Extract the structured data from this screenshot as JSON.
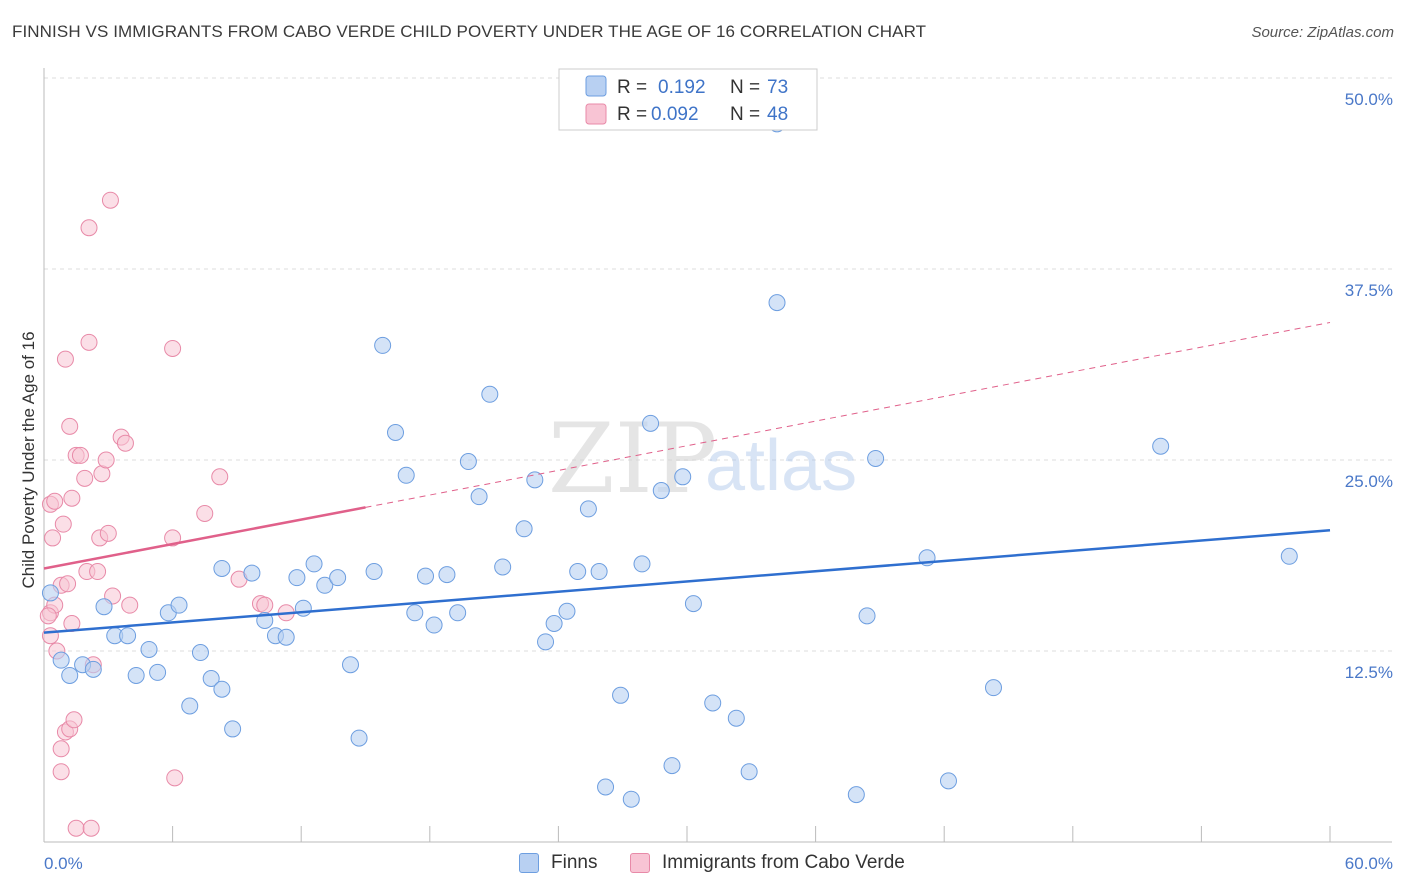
{
  "header": {
    "title": "FINNISH VS IMMIGRANTS FROM CABO VERDE CHILD POVERTY UNDER THE AGE OF 16 CORRELATION CHART",
    "source": "Source: ZipAtlas.com"
  },
  "watermark": {
    "zip": "ZIP",
    "atlas": "atlas"
  },
  "legend": {
    "rows": [
      {
        "r_label": "R =",
        "r_value": "0.192",
        "n_label": "N =",
        "n_value": "73"
      },
      {
        "r_label": "R =",
        "r_value": "0.092",
        "n_label": "N =",
        "n_value": "48"
      }
    ]
  },
  "bottom_legend": {
    "finns": "Finns",
    "cabo": "Immigrants from Cabo Verde"
  },
  "colors": {
    "finns_fill": "#b8d0f2",
    "finns_stroke": "#6d9ee0",
    "finns_line": "#2f6fcf",
    "cabo_fill": "#f8c4d4",
    "cabo_stroke": "#e88aa8",
    "cabo_line": "#e0608a",
    "value_text": "#3f74c8",
    "grid": "#dddddd"
  },
  "chart_data": {
    "type": "scatter",
    "ylabel": "Child Poverty Under the Age of 16",
    "xlim": [
      0,
      60
    ],
    "ylim": [
      0,
      50
    ],
    "x_tick_labels": [
      "0.0%",
      "60.0%"
    ],
    "y_ticks": [
      12.5,
      25.0,
      37.5,
      50.0
    ],
    "y_tick_labels": [
      "12.5%",
      "25.0%",
      "37.5%",
      "50.0%"
    ],
    "grid": true,
    "legend_position": "top-center",
    "series": [
      {
        "name": "Finns",
        "trend": {
          "x": [
            0,
            60
          ],
          "y": [
            13.7,
            20.4
          ]
        },
        "points": [
          [
            0.3,
            16.3
          ],
          [
            0.8,
            11.9
          ],
          [
            1.2,
            10.9
          ],
          [
            1.8,
            11.6
          ],
          [
            2.3,
            11.3
          ],
          [
            2.8,
            15.4
          ],
          [
            3.3,
            13.5
          ],
          [
            3.9,
            13.5
          ],
          [
            4.3,
            10.9
          ],
          [
            4.9,
            12.6
          ],
          [
            5.3,
            11.1
          ],
          [
            5.8,
            15.0
          ],
          [
            6.3,
            15.5
          ],
          [
            6.8,
            8.9
          ],
          [
            7.3,
            12.4
          ],
          [
            7.8,
            10.7
          ],
          [
            8.3,
            10.0
          ],
          [
            8.8,
            7.4
          ],
          [
            8.3,
            17.9
          ],
          [
            9.7,
            17.6
          ],
          [
            10.3,
            14.5
          ],
          [
            10.8,
            13.5
          ],
          [
            11.3,
            13.4
          ],
          [
            11.8,
            17.3
          ],
          [
            12.1,
            15.3
          ],
          [
            12.6,
            18.2
          ],
          [
            13.1,
            16.8
          ],
          [
            13.7,
            17.3
          ],
          [
            14.3,
            11.6
          ],
          [
            14.7,
            6.8
          ],
          [
            15.4,
            17.7
          ],
          [
            15.8,
            32.5
          ],
          [
            16.4,
            26.8
          ],
          [
            16.9,
            24.0
          ],
          [
            17.3,
            15.0
          ],
          [
            17.8,
            17.4
          ],
          [
            18.2,
            14.2
          ],
          [
            18.8,
            17.5
          ],
          [
            19.3,
            15.0
          ],
          [
            19.8,
            24.9
          ],
          [
            20.3,
            22.6
          ],
          [
            20.8,
            29.3
          ],
          [
            21.4,
            18.0
          ],
          [
            22.4,
            20.5
          ],
          [
            22.9,
            23.7
          ],
          [
            23.4,
            13.1
          ],
          [
            23.8,
            14.3
          ],
          [
            24.4,
            15.1
          ],
          [
            24.9,
            17.7
          ],
          [
            25.4,
            21.8
          ],
          [
            25.9,
            17.7
          ],
          [
            26.2,
            3.6
          ],
          [
            26.9,
            9.6
          ],
          [
            27.4,
            2.8
          ],
          [
            27.9,
            18.2
          ],
          [
            28.3,
            27.4
          ],
          [
            28.8,
            23.0
          ],
          [
            29.3,
            5.0
          ],
          [
            29.8,
            23.9
          ],
          [
            30.3,
            15.6
          ],
          [
            31.2,
            9.1
          ],
          [
            32.3,
            8.1
          ],
          [
            32.9,
            4.6
          ],
          [
            34.2,
            35.3
          ],
          [
            34.2,
            47.0
          ],
          [
            37.9,
            3.1
          ],
          [
            38.4,
            14.8
          ],
          [
            38.8,
            25.1
          ],
          [
            41.2,
            18.6
          ],
          [
            42.2,
            4.0
          ],
          [
            44.3,
            10.1
          ],
          [
            52.1,
            25.9
          ],
          [
            58.1,
            18.7
          ]
        ]
      },
      {
        "name": "Immigrants from Cabo Verde",
        "trend": {
          "x": [
            0,
            15
          ],
          "y": [
            17.9,
            21.9
          ]
        },
        "trend_extended": {
          "x": [
            15,
            60
          ],
          "y": [
            21.9,
            34.0
          ]
        },
        "points": [
          [
            0.3,
            15.0
          ],
          [
            0.3,
            22.1
          ],
          [
            0.4,
            19.9
          ],
          [
            0.3,
            13.5
          ],
          [
            0.5,
            15.5
          ],
          [
            0.5,
            22.3
          ],
          [
            0.8,
            16.8
          ],
          [
            0.8,
            4.6
          ],
          [
            0.8,
            6.1
          ],
          [
            0.9,
            20.8
          ],
          [
            1.0,
            31.6
          ],
          [
            1.0,
            7.2
          ],
          [
            1.2,
            27.2
          ],
          [
            1.2,
            7.4
          ],
          [
            1.3,
            14.3
          ],
          [
            1.3,
            22.5
          ],
          [
            1.4,
            8.0
          ],
          [
            1.5,
            25.3
          ],
          [
            1.5,
            0.9
          ],
          [
            1.7,
            25.3
          ],
          [
            1.9,
            23.8
          ],
          [
            2.0,
            17.7
          ],
          [
            2.1,
            32.7
          ],
          [
            2.1,
            40.2
          ],
          [
            2.2,
            0.9
          ],
          [
            2.3,
            11.6
          ],
          [
            2.5,
            17.7
          ],
          [
            2.6,
            19.9
          ],
          [
            2.7,
            24.1
          ],
          [
            2.9,
            25.0
          ],
          [
            3.0,
            20.2
          ],
          [
            3.1,
            42.0
          ],
          [
            3.2,
            16.1
          ],
          [
            3.6,
            26.5
          ],
          [
            3.8,
            26.1
          ],
          [
            4.0,
            15.5
          ],
          [
            6.0,
            32.3
          ],
          [
            6.0,
            19.9
          ],
          [
            6.1,
            4.2
          ],
          [
            7.5,
            21.5
          ],
          [
            8.2,
            23.9
          ],
          [
            9.1,
            17.2
          ],
          [
            10.1,
            15.6
          ],
          [
            10.3,
            15.5
          ],
          [
            11.3,
            15.0
          ],
          [
            0.2,
            14.8
          ],
          [
            0.6,
            12.5
          ],
          [
            1.1,
            16.9
          ]
        ]
      }
    ]
  }
}
